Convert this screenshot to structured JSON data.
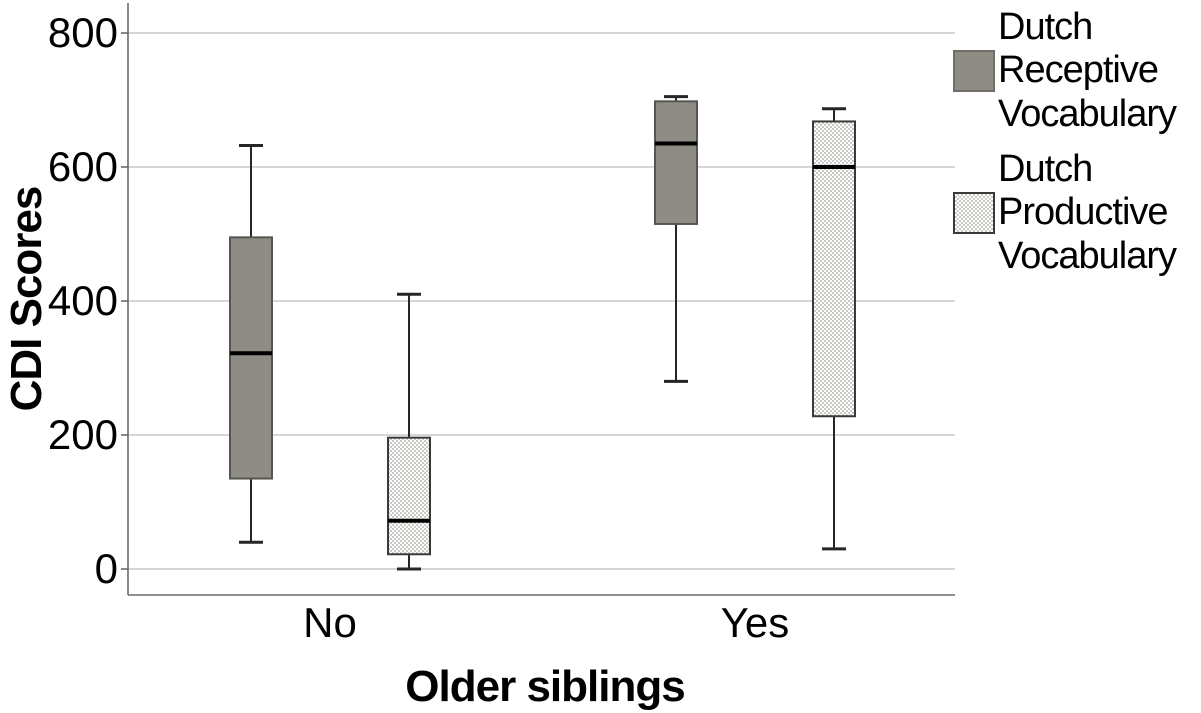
{
  "figure": {
    "y_axis_title": "CDI Scores",
    "x_axis_title": "Older siblings"
  },
  "legend": {
    "position": "right",
    "items": [
      {
        "label": "Dutch Receptive Vocabulary",
        "swatch": "solid-gray"
      },
      {
        "label": "Dutch Productive Vocabulary",
        "swatch": "dotted-checker-pattern"
      }
    ]
  },
  "chart_data": {
    "type": "boxplot",
    "title": "",
    "xlabel": "Older siblings",
    "ylabel": "CDI Scores",
    "categories": [
      "No",
      "Yes"
    ],
    "ylim": [
      0,
      800
    ],
    "yticks": [
      0,
      200,
      400,
      600,
      800
    ],
    "grid": "horizontal-light-gray",
    "legend_position": "right",
    "colors": {
      "receptive_fill": "#8f8c86",
      "receptive_border": "#57554f",
      "productive_fill": "#ffffff",
      "productive_pattern": "#cac9c4",
      "productive_border": "#3a3a3a",
      "median_line": "#000000",
      "whisker": "#262626",
      "gridline": "#c8c8c8",
      "axis_line": "#6b6b6b",
      "text": "#000000",
      "background": "#ffffff"
    },
    "series": [
      {
        "name": "Dutch Receptive Vocabulary",
        "style": "solid",
        "data": [
          {
            "category": "No",
            "min": 40,
            "q1": 135,
            "median": 322,
            "q3": 495,
            "max": 632
          },
          {
            "category": "Yes",
            "min": 280,
            "q1": 515,
            "median": 635,
            "q3": 698,
            "max": 705
          }
        ]
      },
      {
        "name": "Dutch Productive Vocabulary",
        "style": "checker-pattern",
        "data": [
          {
            "category": "No",
            "min": 0,
            "q1": 22,
            "median": 72,
            "q3": 196,
            "max": 410
          },
          {
            "category": "Yes",
            "min": 30,
            "q1": 228,
            "median": 600,
            "q3": 668,
            "max": 687
          }
        ]
      }
    ]
  }
}
